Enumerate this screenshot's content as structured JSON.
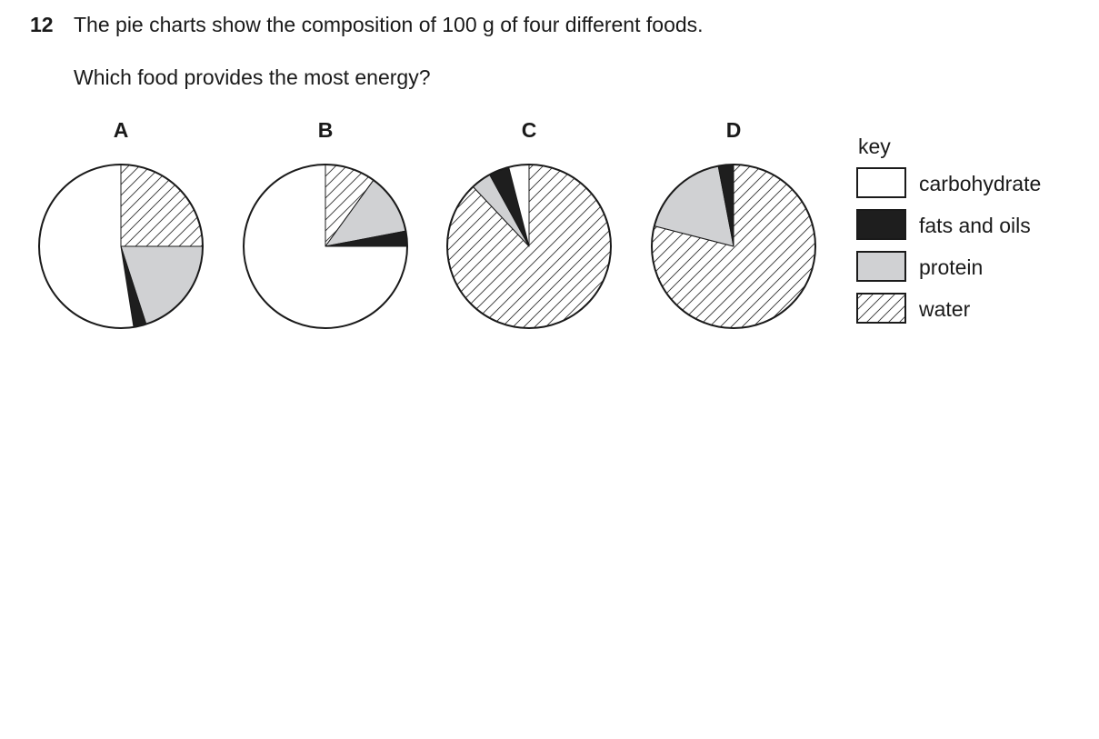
{
  "question": {
    "number": "12",
    "stem": "The pie charts show the composition of 100 g of four different foods.",
    "ask": "Which food provides the most energy?"
  },
  "key": {
    "title": "key",
    "items": [
      {
        "label": "carbohydrate",
        "fill": "white"
      },
      {
        "label": "fats and oils",
        "fill": "black"
      },
      {
        "label": "protein",
        "fill": "grey"
      },
      {
        "label": "water",
        "fill": "hatched"
      }
    ]
  },
  "colors": {
    "outline": "#1a1a1a",
    "carbohydrate": "#ffffff",
    "fats": "#1e1e1e",
    "protein": "#d0d1d3",
    "water_lines": "#333333"
  },
  "chart_data": [
    {
      "type": "pie",
      "title": "A",
      "slices": [
        {
          "name": "water",
          "value": 25
        },
        {
          "name": "protein",
          "value": 20
        },
        {
          "name": "fats and oils",
          "value": 2.5
        },
        {
          "name": "carbohydrate",
          "value": 52.5
        }
      ]
    },
    {
      "type": "pie",
      "title": "B",
      "slices": [
        {
          "name": "water",
          "value": 10
        },
        {
          "name": "protein",
          "value": 12
        },
        {
          "name": "fats and oils",
          "value": 3
        },
        {
          "name": "carbohydrate",
          "value": 75
        }
      ]
    },
    {
      "type": "pie",
      "title": "C",
      "slices": [
        {
          "name": "water",
          "value": 88
        },
        {
          "name": "protein",
          "value": 4
        },
        {
          "name": "fats and oils",
          "value": 4
        },
        {
          "name": "carbohydrate",
          "value": 4
        }
      ]
    },
    {
      "type": "pie",
      "title": "D",
      "slices": [
        {
          "name": "water",
          "value": 79
        },
        {
          "name": "protein",
          "value": 18
        },
        {
          "name": "fats and oils",
          "value": 3
        }
      ]
    }
  ]
}
